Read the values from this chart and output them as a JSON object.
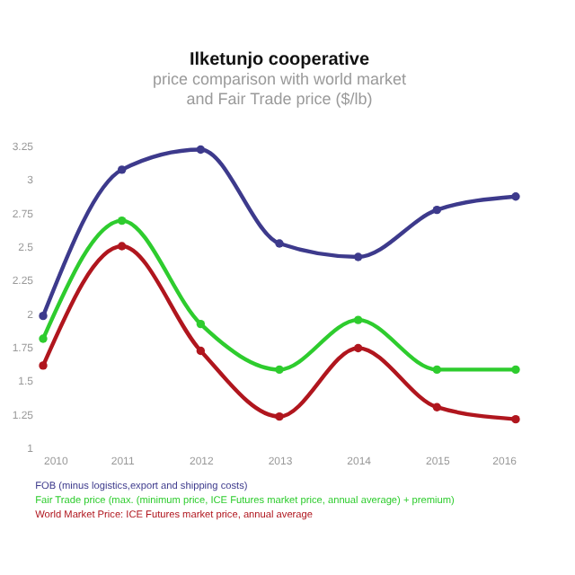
{
  "chart_data": {
    "type": "line",
    "title": "Ilketunjo cooperative",
    "subtitle": "price comparison with world market and Fair Trade price ($/lb)",
    "x": [
      2010,
      2011,
      2012,
      2013,
      2014,
      2015,
      2016
    ],
    "series": [
      {
        "name": "FOB (minus logistics,export and shipping costs)",
        "color": "#3d3a8c",
        "values": [
          1.98,
          3.07,
          3.22,
          2.52,
          2.42,
          2.77,
          2.87
        ]
      },
      {
        "name": "Fair Trade price (max. (minimum price, ICE Futures market price, annual average) + premium)",
        "color": "#2ecc2e",
        "values": [
          1.81,
          2.69,
          1.92,
          1.58,
          1.95,
          1.58,
          1.58
        ]
      },
      {
        "name": "World Market Price: ICE Futures market price, annual average",
        "color": "#b0161e",
        "values": [
          1.61,
          2.5,
          1.72,
          1.23,
          1.74,
          1.3,
          1.21
        ]
      }
    ],
    "xlim": [
      2010,
      2016
    ],
    "xticks": [
      2010,
      2011,
      2012,
      2013,
      2014,
      2015,
      2016
    ],
    "ylim": [
      1,
      3.25
    ],
    "yticks": [
      1,
      1.25,
      1.5,
      1.75,
      2,
      2.25,
      2.5,
      2.75,
      3,
      3.25
    ],
    "grid": false,
    "legend": "bottom",
    "marker": "circle",
    "line_style": "solid"
  }
}
